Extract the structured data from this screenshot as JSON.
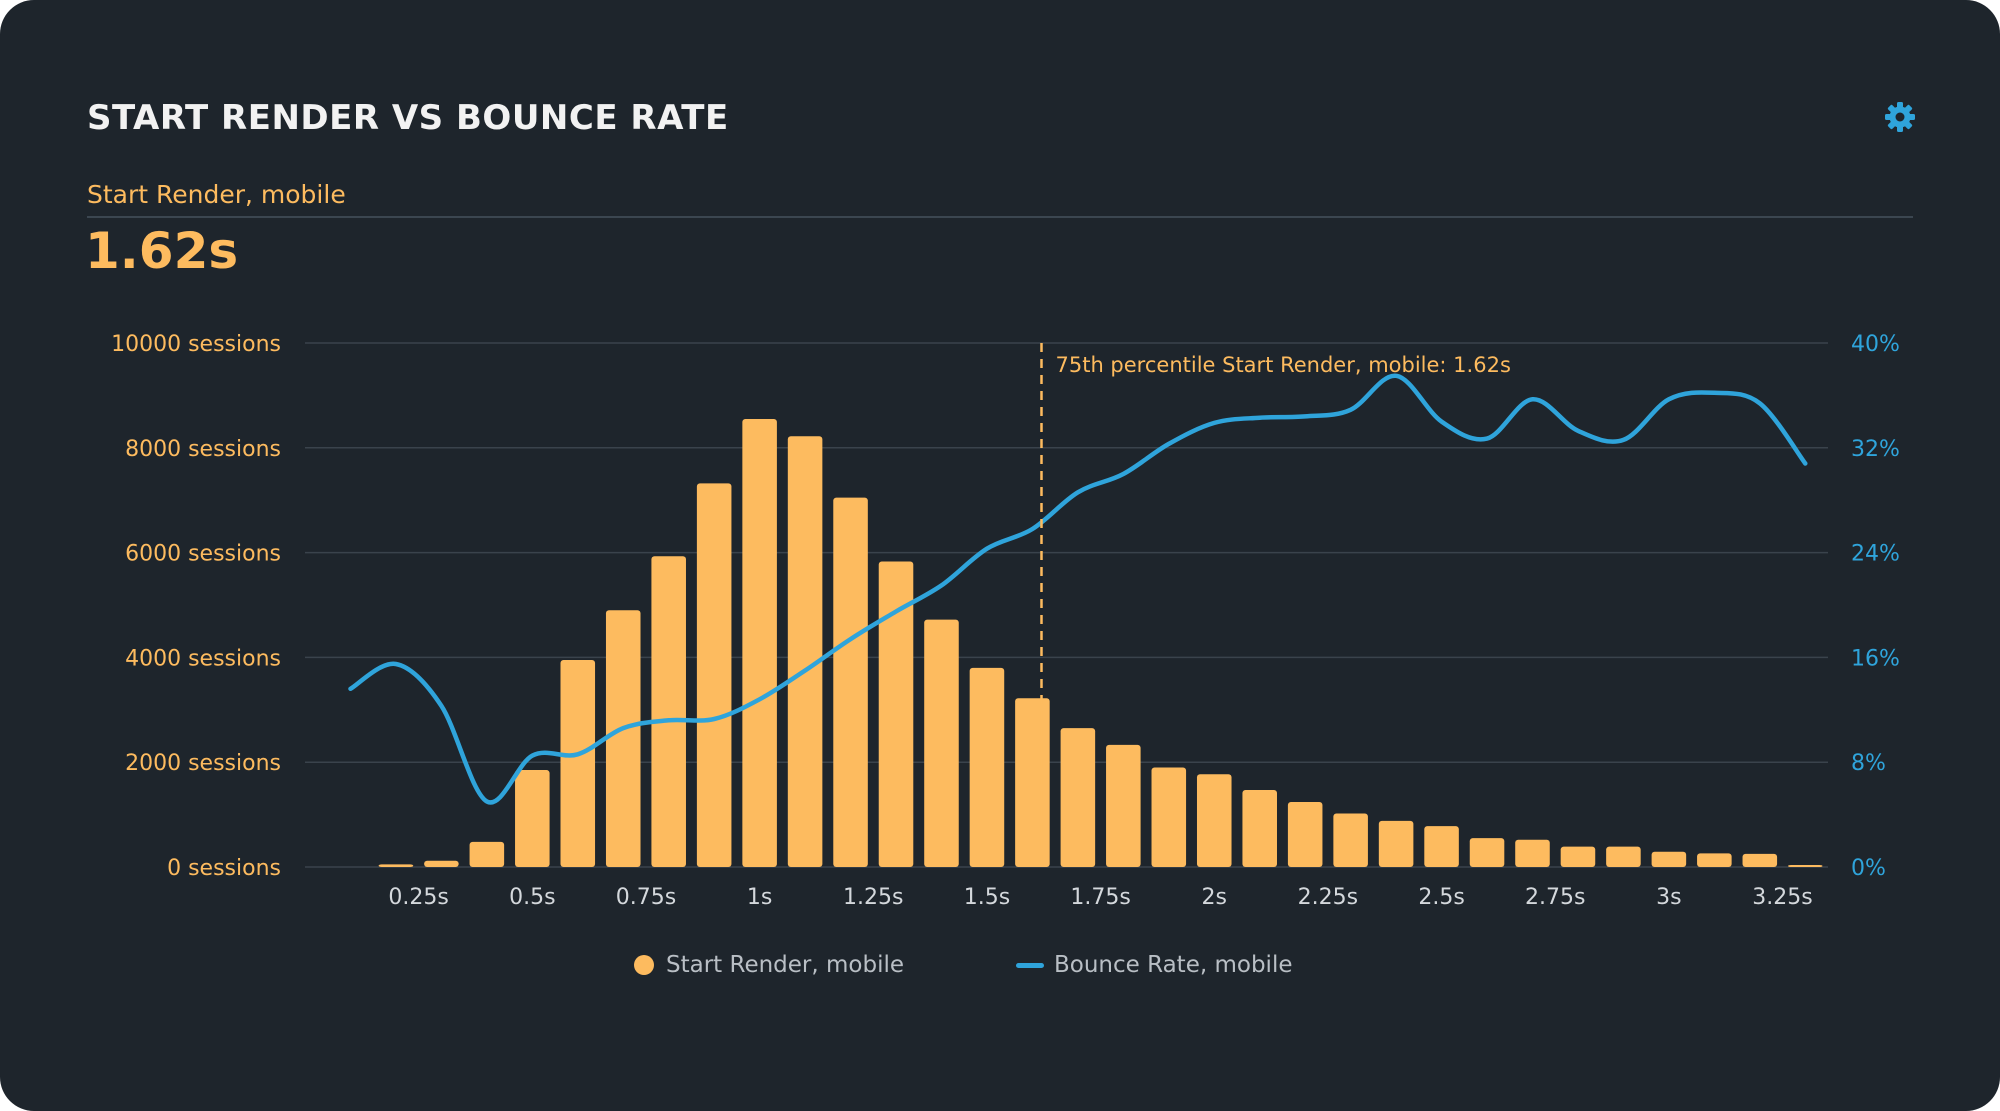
{
  "title": "START RENDER VS BOUNCE RATE",
  "settings_icon": "gear-icon",
  "metric": {
    "label": "Start Render, mobile",
    "value": "1.62s"
  },
  "colors": {
    "background": "#1e252c",
    "bars": "#fdbb5f",
    "line": "#2fa4db",
    "grid": "#3a434c",
    "title": "#f2f2f2",
    "x_ticks": "#d4d8dc"
  },
  "chart_data": {
    "type": "bar+line",
    "x_ticks": [
      "0.25s",
      "0.5s",
      "0.75s",
      "1s",
      "1.25s",
      "1.5s",
      "1.75s",
      "2s",
      "2.25s",
      "2.5s",
      "2.75s",
      "3s",
      "3.25s"
    ],
    "x_tick_values": [
      0.25,
      0.5,
      0.75,
      1.0,
      1.25,
      1.5,
      1.75,
      2.0,
      2.25,
      2.5,
      2.75,
      3.0,
      3.25
    ],
    "xlim": [
      0.0,
      3.35
    ],
    "y_left": {
      "ticks": [
        "0 sessions",
        "2000 sessions",
        "4000 sessions",
        "6000 sessions",
        "8000 sessions",
        "10000 sessions"
      ],
      "range": [
        0,
        10000
      ]
    },
    "y_right": {
      "ticks": [
        "0%",
        "8%",
        "16%",
        "24%",
        "32%",
        "40%"
      ],
      "range": [
        0,
        40
      ]
    },
    "grid": true,
    "legend_position": "bottom-center",
    "series": [
      {
        "name": "Start Render, mobile",
        "type": "bar",
        "axis": "left",
        "x": [
          0.2,
          0.3,
          0.4,
          0.5,
          0.6,
          0.7,
          0.8,
          0.9,
          1.0,
          1.1,
          1.2,
          1.3,
          1.4,
          1.5,
          1.6,
          1.7,
          1.8,
          1.9,
          2.0,
          2.1,
          2.2,
          2.3,
          2.4,
          2.5,
          2.6,
          2.7,
          2.8,
          2.9,
          3.0,
          3.1,
          3.2,
          3.3
        ],
        "values": [
          50,
          120,
          480,
          1850,
          3950,
          4900,
          5930,
          7320,
          8550,
          8220,
          7050,
          5830,
          4720,
          3800,
          3220,
          2650,
          2330,
          1900,
          1770,
          1470,
          1240,
          1020,
          880,
          780,
          550,
          520,
          390,
          390,
          290,
          260,
          250,
          30
        ]
      },
      {
        "name": "Bounce Rate, mobile",
        "type": "line",
        "axis": "right",
        "x": [
          0.1,
          0.2,
          0.3,
          0.4,
          0.5,
          0.6,
          0.7,
          0.8,
          0.9,
          1.0,
          1.1,
          1.2,
          1.3,
          1.4,
          1.5,
          1.6,
          1.7,
          1.8,
          1.9,
          2.0,
          2.1,
          2.2,
          2.3,
          2.4,
          2.5,
          2.6,
          2.7,
          2.8,
          2.9,
          3.0,
          3.1,
          3.2,
          3.3
        ],
        "values": [
          13.6,
          15.5,
          12.3,
          5.0,
          8.5,
          8.6,
          10.6,
          11.2,
          11.3,
          12.8,
          15.0,
          17.4,
          19.5,
          21.5,
          24.3,
          25.8,
          28.6,
          30.0,
          32.3,
          33.9,
          34.3,
          34.4,
          34.9,
          37.5,
          34.0,
          32.7,
          35.7,
          33.3,
          32.6,
          35.7,
          36.2,
          35.4,
          30.8
        ]
      }
    ],
    "annotations": [
      {
        "type": "vertical-line",
        "x": 1.62,
        "axis_fraction_top": 1.0,
        "label": "75th percentile Start Render, mobile: 1.62s"
      }
    ]
  }
}
